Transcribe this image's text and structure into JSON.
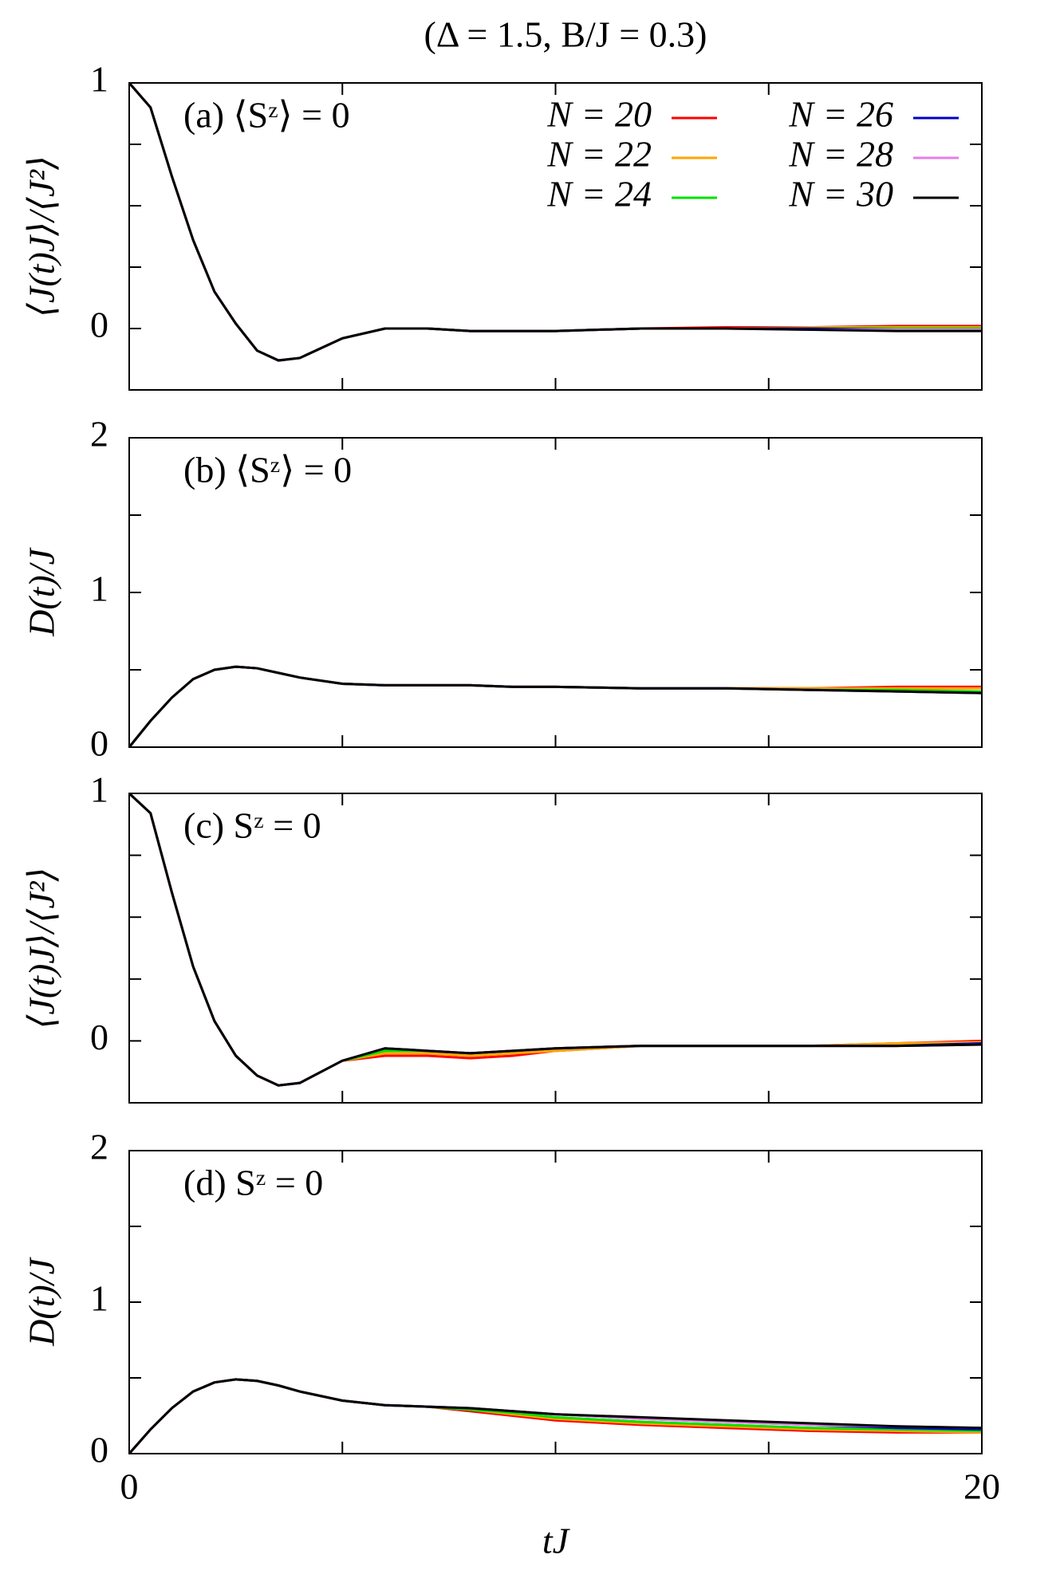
{
  "title": "(Δ = 1.5, B/J = 0.3)",
  "chart_data": [
    {
      "type": "line",
      "annotation": "(a) ⟨Sᶻ⟩ = 0",
      "ylabel": "⟨J(t)J⟩/⟨J²⟩",
      "legend": true,
      "legend_loc": "upper right",
      "x": [
        0,
        0.5,
        1,
        1.5,
        2,
        2.5,
        3,
        3.5,
        4,
        5,
        6,
        7,
        8,
        9,
        10,
        12,
        14,
        16,
        18,
        20
      ],
      "xlim": [
        0,
        20
      ],
      "xminor_ticks": [
        5,
        10,
        15
      ],
      "ylim": [
        -0.25,
        1
      ],
      "yticks": [
        0,
        1
      ],
      "yminor_ticks": [
        0.25,
        0.5,
        0.75
      ],
      "series": [
        {
          "name": "N = 20",
          "color": "#ff0000",
          "values": [
            1,
            0.9,
            0.62,
            0.36,
            0.15,
            0.02,
            -0.09,
            -0.13,
            -0.12,
            -0.04,
            0,
            0,
            -0.01,
            -0.01,
            -0.01,
            0,
            0.005,
            0.005,
            0.01,
            0.01
          ]
        },
        {
          "name": "N = 22",
          "color": "#ffa500",
          "values": [
            1,
            0.9,
            0.62,
            0.36,
            0.15,
            0.02,
            -0.09,
            -0.13,
            -0.12,
            -0.04,
            0,
            0,
            -0.01,
            -0.01,
            -0.01,
            0,
            0,
            0.005,
            0.005,
            0.005
          ]
        },
        {
          "name": "N = 24",
          "color": "#00e000",
          "values": [
            1,
            0.9,
            0.62,
            0.36,
            0.15,
            0.02,
            -0.09,
            -0.13,
            -0.12,
            -0.04,
            0,
            0,
            -0.01,
            -0.01,
            -0.01,
            0,
            0,
            0,
            0,
            0
          ]
        },
        {
          "name": "N = 26",
          "color": "#0000c8",
          "values": [
            1,
            0.9,
            0.62,
            0.36,
            0.15,
            0.02,
            -0.09,
            -0.13,
            -0.12,
            -0.04,
            0,
            0,
            -0.01,
            -0.01,
            -0.01,
            0,
            0,
            0,
            -0.005,
            -0.005
          ]
        },
        {
          "name": "N = 28",
          "color": "#e67ee6",
          "values": [
            1,
            0.9,
            0.62,
            0.36,
            0.15,
            0.02,
            -0.09,
            -0.13,
            -0.12,
            -0.04,
            0,
            0,
            -0.01,
            -0.01,
            -0.01,
            0,
            0,
            -0.005,
            -0.005,
            -0.005
          ]
        },
        {
          "name": "N = 30",
          "color": "#000000",
          "values": [
            1,
            0.9,
            0.62,
            0.36,
            0.15,
            0.02,
            -0.09,
            -0.13,
            -0.12,
            -0.04,
            0,
            0,
            -0.01,
            -0.01,
            -0.01,
            0,
            0,
            -0.005,
            -0.01,
            -0.01
          ]
        }
      ]
    },
    {
      "type": "line",
      "annotation": "(b) ⟨Sᶻ⟩ = 0",
      "ylabel": "D(t)/J",
      "x": [
        0,
        0.5,
        1,
        1.5,
        2,
        2.5,
        3,
        3.5,
        4,
        5,
        6,
        7,
        8,
        9,
        10,
        12,
        14,
        16,
        18,
        20
      ],
      "xlim": [
        0,
        20
      ],
      "xminor_ticks": [
        5,
        10,
        15
      ],
      "ylim": [
        0,
        2
      ],
      "yticks": [
        0,
        1,
        2
      ],
      "yminor_ticks": [
        0.5,
        1.5
      ],
      "series": [
        {
          "color": "#ff0000",
          "values": [
            0,
            0.17,
            0.32,
            0.44,
            0.5,
            0.52,
            0.51,
            0.48,
            0.45,
            0.41,
            0.4,
            0.4,
            0.4,
            0.39,
            0.39,
            0.38,
            0.38,
            0.38,
            0.39,
            0.39
          ]
        },
        {
          "color": "#ffa500",
          "values": [
            0,
            0.17,
            0.32,
            0.44,
            0.5,
            0.52,
            0.51,
            0.48,
            0.45,
            0.41,
            0.4,
            0.4,
            0.4,
            0.39,
            0.39,
            0.38,
            0.38,
            0.38,
            0.38,
            0.38
          ]
        },
        {
          "color": "#00e000",
          "values": [
            0,
            0.17,
            0.32,
            0.44,
            0.5,
            0.52,
            0.51,
            0.48,
            0.45,
            0.41,
            0.4,
            0.4,
            0.4,
            0.39,
            0.39,
            0.38,
            0.38,
            0.37,
            0.37,
            0.36
          ]
        },
        {
          "color": "#0000c8",
          "values": [
            0,
            0.17,
            0.32,
            0.44,
            0.5,
            0.52,
            0.51,
            0.48,
            0.45,
            0.41,
            0.4,
            0.4,
            0.4,
            0.39,
            0.39,
            0.38,
            0.38,
            0.37,
            0.36,
            0.35
          ]
        },
        {
          "color": "#e67ee6",
          "values": [
            0,
            0.17,
            0.32,
            0.44,
            0.5,
            0.52,
            0.51,
            0.48,
            0.45,
            0.41,
            0.4,
            0.4,
            0.4,
            0.39,
            0.39,
            0.38,
            0.38,
            0.37,
            0.36,
            0.35
          ]
        },
        {
          "color": "#000000",
          "values": [
            0,
            0.17,
            0.32,
            0.44,
            0.5,
            0.52,
            0.51,
            0.48,
            0.45,
            0.41,
            0.4,
            0.4,
            0.4,
            0.39,
            0.39,
            0.38,
            0.38,
            0.37,
            0.36,
            0.35
          ]
        }
      ]
    },
    {
      "type": "line",
      "annotation": "(c) Sᶻ = 0",
      "ylabel": "⟨J(t)J⟩/⟨J²⟩",
      "x": [
        0,
        0.5,
        1,
        1.5,
        2,
        2.5,
        3,
        3.5,
        4,
        5,
        6,
        7,
        8,
        9,
        10,
        12,
        14,
        16,
        18,
        20
      ],
      "xlim": [
        0,
        20
      ],
      "xminor_ticks": [
        5,
        10,
        15
      ],
      "ylim": [
        -0.25,
        1
      ],
      "yticks": [
        0,
        1
      ],
      "yminor_ticks": [
        0.25,
        0.5,
        0.75
      ],
      "series": [
        {
          "color": "#ff0000",
          "values": [
            1,
            0.92,
            0.6,
            0.3,
            0.08,
            -0.06,
            -0.14,
            -0.18,
            -0.17,
            -0.08,
            -0.06,
            -0.06,
            -0.07,
            -0.06,
            -0.04,
            -0.02,
            -0.02,
            -0.02,
            -0.01,
            0
          ]
        },
        {
          "color": "#ffa500",
          "values": [
            1,
            0.92,
            0.6,
            0.3,
            0.08,
            -0.06,
            -0.14,
            -0.18,
            -0.17,
            -0.08,
            -0.05,
            -0.05,
            -0.06,
            -0.05,
            -0.04,
            -0.02,
            -0.02,
            -0.02,
            -0.01,
            -0.005
          ]
        },
        {
          "color": "#00e000",
          "values": [
            1,
            0.92,
            0.6,
            0.3,
            0.08,
            -0.06,
            -0.14,
            -0.18,
            -0.17,
            -0.08,
            -0.04,
            -0.04,
            -0.05,
            -0.04,
            -0.03,
            -0.02,
            -0.02,
            -0.02,
            -0.02,
            -0.01
          ]
        },
        {
          "color": "#0000c8",
          "values": [
            1,
            0.92,
            0.6,
            0.3,
            0.08,
            -0.06,
            -0.14,
            -0.18,
            -0.17,
            -0.08,
            -0.03,
            -0.04,
            -0.05,
            -0.04,
            -0.03,
            -0.02,
            -0.02,
            -0.02,
            -0.02,
            -0.01
          ]
        },
        {
          "color": "#e67ee6",
          "values": [
            1,
            0.92,
            0.6,
            0.3,
            0.08,
            -0.06,
            -0.14,
            -0.18,
            -0.17,
            -0.08,
            -0.03,
            -0.04,
            -0.05,
            -0.04,
            -0.03,
            -0.02,
            -0.02,
            -0.02,
            -0.02,
            -0.015
          ]
        },
        {
          "color": "#000000",
          "values": [
            1,
            0.92,
            0.6,
            0.3,
            0.08,
            -0.06,
            -0.14,
            -0.18,
            -0.17,
            -0.08,
            -0.03,
            -0.04,
            -0.05,
            -0.04,
            -0.03,
            -0.02,
            -0.02,
            -0.02,
            -0.02,
            -0.015
          ]
        }
      ]
    },
    {
      "type": "line",
      "annotation": "(d) Sᶻ = 0",
      "ylabel": "D(t)/J",
      "xlabel": "tJ",
      "x": [
        0,
        0.5,
        1,
        1.5,
        2,
        2.5,
        3,
        3.5,
        4,
        5,
        6,
        7,
        8,
        9,
        10,
        12,
        14,
        16,
        18,
        20
      ],
      "xlim": [
        0,
        20
      ],
      "xticks": [
        0,
        20
      ],
      "xminor_ticks": [
        5,
        10,
        15
      ],
      "ylim": [
        0,
        2
      ],
      "yticks": [
        0,
        1,
        2
      ],
      "yminor_ticks": [
        0.5,
        1.5
      ],
      "series": [
        {
          "color": "#ff0000",
          "values": [
            0,
            0.16,
            0.3,
            0.41,
            0.47,
            0.49,
            0.48,
            0.45,
            0.41,
            0.35,
            0.32,
            0.31,
            0.28,
            0.25,
            0.22,
            0.19,
            0.17,
            0.15,
            0.14,
            0.14
          ]
        },
        {
          "color": "#ffa500",
          "values": [
            0,
            0.16,
            0.3,
            0.41,
            0.47,
            0.49,
            0.48,
            0.45,
            0.41,
            0.35,
            0.32,
            0.31,
            0.29,
            0.26,
            0.23,
            0.2,
            0.18,
            0.16,
            0.15,
            0.14
          ]
        },
        {
          "color": "#00e000",
          "values": [
            0,
            0.16,
            0.3,
            0.41,
            0.47,
            0.49,
            0.48,
            0.45,
            0.41,
            0.35,
            0.32,
            0.31,
            0.29,
            0.27,
            0.24,
            0.21,
            0.19,
            0.17,
            0.16,
            0.15
          ]
        },
        {
          "color": "#0000c8",
          "values": [
            0,
            0.16,
            0.3,
            0.41,
            0.47,
            0.49,
            0.48,
            0.45,
            0.41,
            0.35,
            0.32,
            0.31,
            0.3,
            0.28,
            0.26,
            0.23,
            0.21,
            0.19,
            0.17,
            0.16
          ]
        },
        {
          "color": "#e67ee6",
          "values": [
            0,
            0.16,
            0.3,
            0.41,
            0.47,
            0.49,
            0.48,
            0.45,
            0.41,
            0.35,
            0.32,
            0.31,
            0.3,
            0.28,
            0.26,
            0.23,
            0.21,
            0.19,
            0.18,
            0.17
          ]
        },
        {
          "color": "#000000",
          "values": [
            0,
            0.16,
            0.3,
            0.41,
            0.47,
            0.49,
            0.48,
            0.45,
            0.41,
            0.35,
            0.32,
            0.31,
            0.3,
            0.28,
            0.26,
            0.24,
            0.22,
            0.2,
            0.18,
            0.17
          ]
        }
      ]
    }
  ]
}
